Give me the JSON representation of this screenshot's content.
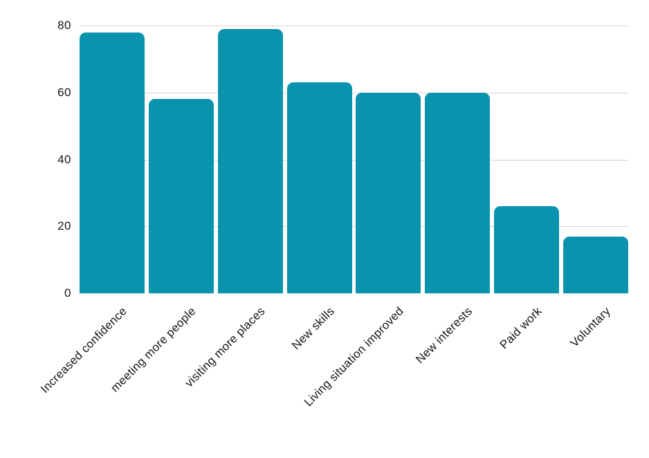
{
  "chart_data": {
    "type": "bar",
    "title": "",
    "xlabel": "",
    "ylabel": "",
    "categories": [
      "Increased confidence",
      "meeting more people",
      "visiting more places",
      "New skills",
      "Living situation improved",
      "New interests",
      "Paid work",
      "Voluntary"
    ],
    "values": [
      78,
      58,
      79,
      63,
      60,
      60,
      26,
      17
    ],
    "ylim": [
      0,
      80
    ],
    "yticks": [
      0,
      20,
      40,
      60,
      80
    ],
    "grid": true,
    "legend": false,
    "colors": {
      "bar": "#0A93AD",
      "gridline": "#D4D4D4",
      "text": "#141414",
      "background": "#FFFFFF"
    }
  }
}
